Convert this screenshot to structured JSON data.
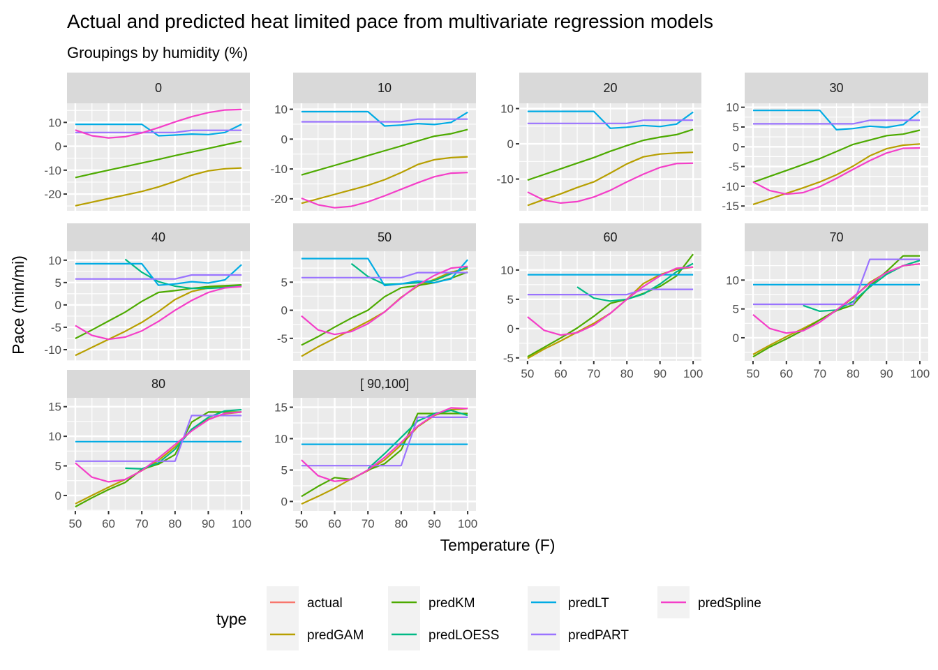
{
  "chart_data": {
    "type": "line",
    "title": "Actual and predicted heat limited pace from multivariate regression models",
    "subtitle": "Groupings by humidity (%)",
    "xlabel": "Temperature (F)",
    "ylabel": "Pace (min/mi)",
    "x": [
      50,
      55,
      60,
      65,
      70,
      75,
      80,
      85,
      90,
      95,
      100
    ],
    "x_ticks": [
      50,
      60,
      70,
      80,
      90,
      100
    ],
    "grid": true,
    "legend": {
      "title": "type",
      "position": "bottom",
      "entries": [
        {
          "name": "actual",
          "color": "#F8766D"
        },
        {
          "name": "predGAM",
          "color": "#B79F00"
        },
        {
          "name": "predKM",
          "color": "#4DAA00"
        },
        {
          "name": "predLOESS",
          "color": "#00B985"
        },
        {
          "name": "predLT",
          "color": "#00ABE4"
        },
        {
          "name": "predPART",
          "color": "#9A73FF"
        },
        {
          "name": "predSpline",
          "color": "#F43EC8"
        }
      ]
    },
    "panels": [
      {
        "label": "0",
        "ylim": [
          -27,
          18
        ],
        "y_ticks": [
          -20,
          -10,
          0,
          10
        ],
        "series": {
          "predGAM": [
            -24.9,
            -23.4,
            -21.9,
            -20.4,
            -18.9,
            -17.0,
            -14.7,
            -12.1,
            -10.3,
            -9.4,
            -9.1
          ],
          "predKM": [
            -13.1,
            -11.5,
            -10.0,
            -8.5,
            -7.0,
            -5.5,
            -3.9,
            -2.4,
            -0.9,
            0.6,
            2.1
          ],
          "predLT": [
            9.2,
            9.2,
            9.2,
            9.2,
            9.2,
            4.4,
            4.7,
            5.1,
            4.9,
            5.8,
            9.2
          ],
          "predPART": [
            5.8,
            5.8,
            5.8,
            5.8,
            5.8,
            5.8,
            5.8,
            6.7,
            6.7,
            6.7,
            6.7
          ],
          "predSpline": [
            6.8,
            4.4,
            3.5,
            4.0,
            5.6,
            7.8,
            10.2,
            12.4,
            14.1,
            15.2,
            15.4
          ]
        }
      },
      {
        "label": "10",
        "ylim": [
          -24,
          12
        ],
        "y_ticks": [
          -20,
          -10,
          0,
          10
        ],
        "series": {
          "predGAM": [
            -21.5,
            -20.0,
            -18.5,
            -17.0,
            -15.5,
            -13.6,
            -11.2,
            -8.5,
            -6.9,
            -6.2,
            -5.9
          ],
          "predKM": [
            -12.0,
            -10.4,
            -8.8,
            -7.2,
            -5.5,
            -3.9,
            -2.3,
            -0.6,
            1.0,
            1.8,
            3.2
          ],
          "predLT": [
            9.2,
            9.2,
            9.2,
            9.2,
            9.2,
            4.4,
            4.7,
            5.2,
            4.9,
            5.6,
            9.0
          ],
          "predPART": [
            5.8,
            5.8,
            5.8,
            5.8,
            5.8,
            5.8,
            5.8,
            6.7,
            6.7,
            6.7,
            6.7
          ],
          "predSpline": [
            -19.8,
            -22.0,
            -23.0,
            -22.5,
            -21.0,
            -19.0,
            -16.8,
            -14.6,
            -12.6,
            -11.4,
            -11.2
          ]
        }
      },
      {
        "label": "20",
        "ylim": [
          -19,
          11.5
        ],
        "y_ticks": [
          -10,
          0,
          10
        ],
        "series": {
          "predGAM": [
            -17.5,
            -15.8,
            -14.2,
            -12.4,
            -10.8,
            -8.3,
            -5.7,
            -3.7,
            -2.9,
            -2.6,
            -2.4
          ],
          "predKM": [
            -10.3,
            -8.7,
            -7.1,
            -5.5,
            -3.9,
            -2.1,
            -0.5,
            1.0,
            1.9,
            2.6,
            4.1
          ],
          "predLT": [
            9.2,
            9.2,
            9.2,
            9.2,
            9.2,
            4.4,
            4.7,
            5.2,
            4.9,
            5.6,
            9.0
          ],
          "predPART": [
            5.8,
            5.8,
            5.8,
            5.8,
            5.8,
            5.8,
            5.8,
            6.7,
            6.7,
            6.7,
            6.7
          ],
          "predSpline": [
            -13.7,
            -16.0,
            -16.8,
            -16.4,
            -15.1,
            -13.2,
            -10.8,
            -8.6,
            -6.7,
            -5.6,
            -5.5
          ]
        }
      },
      {
        "label": "30",
        "ylim": [
          -16.2,
          11
        ],
        "y_ticks": [
          -15,
          -10,
          -5,
          0,
          5,
          10
        ],
        "series": {
          "predGAM": [
            -14.6,
            -13.2,
            -11.8,
            -10.4,
            -8.9,
            -7.1,
            -4.9,
            -2.3,
            -0.5,
            0.4,
            0.7
          ],
          "predKM": [
            -9.0,
            -7.5,
            -6.0,
            -4.5,
            -3.0,
            -1.2,
            0.6,
            1.7,
            2.8,
            3.2,
            4.2
          ],
          "predLT": [
            9.2,
            9.2,
            9.2,
            9.2,
            9.2,
            4.3,
            4.6,
            5.2,
            4.9,
            5.6,
            9.0
          ],
          "predPART": [
            5.8,
            5.8,
            5.8,
            5.8,
            5.8,
            5.8,
            5.8,
            6.7,
            6.7,
            6.7,
            6.7
          ],
          "predSpline": [
            -8.9,
            -11.1,
            -12.0,
            -11.6,
            -10.1,
            -8.0,
            -5.7,
            -3.5,
            -1.6,
            -0.4,
            -0.3
          ]
        }
      },
      {
        "label": "40",
        "ylim": [
          -12.5,
          12
        ],
        "y_ticks": [
          -10,
          -5,
          0,
          5,
          10
        ],
        "series": {
          "predGAM": [
            -11.3,
            -9.5,
            -7.7,
            -5.9,
            -3.9,
            -1.5,
            1.2,
            3.0,
            3.8,
            4.2,
            4.4
          ],
          "predKM": [
            -7.5,
            -5.6,
            -3.6,
            -1.6,
            0.8,
            2.8,
            3.2,
            3.7,
            4.1,
            4.3,
            4.5
          ],
          "predLOESS": [
            null,
            null,
            null,
            10.2,
            7.3,
            5.2,
            4.2,
            3.7,
            3.7,
            3.9,
            4.2
          ],
          "predLT": [
            9.2,
            9.2,
            9.2,
            9.2,
            9.2,
            4.4,
            4.7,
            5.2,
            4.9,
            5.6,
            9.0
          ],
          "predPART": [
            5.8,
            5.8,
            5.8,
            5.8,
            5.8,
            5.8,
            5.8,
            6.7,
            6.7,
            6.7,
            6.7
          ],
          "predSpline": [
            -4.6,
            -6.8,
            -7.7,
            -7.2,
            -5.8,
            -3.7,
            -1.2,
            1.0,
            2.8,
            3.8,
            4.1
          ]
        }
      },
      {
        "label": "50",
        "ylim": [
          -9,
          10.5
        ],
        "y_ticks": [
          -5,
          0,
          5
        ],
        "series": {
          "predGAM": [
            -8.2,
            -6.5,
            -5.0,
            -3.5,
            -2.0,
            -0.3,
            2.3,
            4.3,
            5.5,
            6.8,
            7.4
          ],
          "predKM": [
            -6.2,
            -4.7,
            -3.0,
            -1.4,
            0.0,
            2.4,
            4.0,
            4.4,
            4.9,
            5.7,
            6.8
          ],
          "predLOESS": [
            null,
            null,
            null,
            8.3,
            6.0,
            4.6,
            4.7,
            4.9,
            5.3,
            6.5,
            7.7
          ],
          "predLT": [
            9.2,
            9.2,
            9.2,
            9.2,
            9.2,
            4.4,
            4.7,
            5.2,
            4.9,
            5.6,
            9.0
          ],
          "predPART": [
            5.8,
            5.8,
            5.8,
            5.8,
            5.8,
            5.8,
            5.8,
            6.7,
            6.7,
            6.7,
            6.7
          ],
          "predSpline": [
            -1.0,
            -3.5,
            -4.3,
            -3.8,
            -2.4,
            -0.3,
            2.2,
            4.5,
            6.2,
            7.5,
            7.8
          ]
        }
      },
      {
        "label": "60",
        "ylim": [
          -5.5,
          13.2
        ],
        "y_ticks": [
          -5,
          0,
          5,
          10
        ],
        "series": {
          "predGAM": [
            -5.1,
            -3.5,
            -2.1,
            -0.6,
            0.9,
            2.6,
            5.0,
            7.7,
            9.2,
            10.1,
            10.5
          ],
          "predKM": [
            -4.8,
            -3.2,
            -1.6,
            0.1,
            2.1,
            4.3,
            5.0,
            6.0,
            7.2,
            9.0,
            12.7
          ],
          "predLOESS": [
            null,
            null,
            null,
            7.1,
            5.2,
            4.7,
            5.0,
            5.9,
            7.6,
            9.7,
            11.1
          ],
          "predLT": [
            9.2,
            9.2,
            9.2,
            9.2,
            9.2,
            9.2,
            9.2,
            9.2,
            9.2,
            9.2,
            9.2
          ],
          "predPART": [
            5.8,
            5.8,
            5.8,
            5.8,
            5.8,
            5.8,
            5.8,
            6.7,
            6.7,
            6.7,
            6.7
          ],
          "predSpline": [
            2.0,
            -0.3,
            -1.1,
            -0.7,
            0.6,
            2.6,
            5.0,
            7.2,
            9.0,
            10.3,
            10.5
          ]
        }
      },
      {
        "label": "70",
        "ylim": [
          -4,
          15
        ],
        "y_ticks": [
          0,
          5,
          10
        ],
        "series": {
          "predGAM": [
            -2.9,
            -1.3,
            0.2,
            1.6,
            3.1,
            4.8,
            6.9,
            9.6,
            11.3,
            12.5,
            12.8
          ],
          "predKM": [
            -3.3,
            -1.6,
            -0.2,
            1.3,
            3.1,
            4.7,
            5.7,
            9.0,
            11.5,
            14.2,
            14.2
          ],
          "predLOESS": [
            null,
            null,
            null,
            5.6,
            4.6,
            4.8,
            6.3,
            8.8,
            11.0,
            12.5,
            13.4
          ],
          "predLT": [
            9.2,
            9.2,
            9.2,
            9.2,
            9.2,
            9.2,
            9.2,
            9.2,
            9.2,
            9.2,
            9.2
          ],
          "predPART": [
            5.8,
            5.8,
            5.8,
            5.8,
            5.8,
            5.8,
            5.8,
            13.6,
            13.6,
            13.6,
            13.6
          ],
          "predSpline": [
            4.0,
            1.6,
            0.8,
            1.2,
            2.7,
            4.8,
            7.1,
            9.4,
            11.3,
            12.5,
            12.8
          ]
        }
      },
      {
        "label": "80",
        "ylim": [
          -2.6,
          16.5
        ],
        "y_ticks": [
          0,
          5,
          10,
          15
        ],
        "series": {
          "predGAM": [
            -1.4,
            0.0,
            1.4,
            2.7,
            4.2,
            5.9,
            8.2,
            11.0,
            12.9,
            13.8,
            14.1
          ],
          "predKM": [
            -1.9,
            -0.4,
            1.0,
            2.2,
            4.4,
            5.3,
            6.9,
            12.4,
            14.1,
            14.1,
            14.1
          ],
          "predLOESS": [
            null,
            null,
            null,
            4.6,
            4.5,
            5.5,
            7.8,
            11.2,
            13.2,
            14.3,
            14.5
          ],
          "predLT": [
            9.1,
            9.1,
            9.1,
            9.1,
            9.1,
            9.1,
            9.1,
            9.1,
            9.1,
            9.1,
            9.1
          ],
          "predPART": [
            5.8,
            5.8,
            5.8,
            5.8,
            5.8,
            5.8,
            5.8,
            13.5,
            13.5,
            13.5,
            13.5
          ],
          "predSpline": [
            5.5,
            3.1,
            2.3,
            2.7,
            4.2,
            6.3,
            8.6,
            10.9,
            12.8,
            13.9,
            14.1
          ]
        }
      },
      {
        "label": "[ 90,100]",
        "ylim": [
          -1.5,
          16.5
        ],
        "y_ticks": [
          0,
          5,
          10,
          15
        ],
        "series": {
          "predGAM": [
            -0.4,
            0.8,
            2.1,
            3.6,
            4.9,
            6.6,
            9.0,
            11.9,
            13.7,
            14.6,
            14.8
          ],
          "predKM": [
            0.8,
            2.4,
            3.8,
            3.5,
            5.0,
            6.0,
            8.2,
            14.0,
            14.0,
            14.0,
            14.0
          ],
          "predLOESS": [
            null,
            null,
            null,
            null,
            5.2,
            7.6,
            10.2,
            12.8,
            14.0,
            14.5,
            13.7
          ],
          "predLT": [
            9.1,
            9.1,
            9.1,
            9.1,
            9.1,
            9.1,
            9.1,
            9.1,
            9.1,
            9.1,
            9.1
          ],
          "predPART": [
            5.7,
            5.7,
            5.7,
            5.7,
            5.7,
            5.7,
            5.7,
            13.4,
            13.4,
            13.4,
            13.4
          ],
          "predSpline": [
            6.6,
            4.1,
            3.2,
            3.5,
            5.0,
            7.0,
            9.4,
            12.0,
            13.8,
            14.9,
            14.8
          ]
        }
      }
    ]
  }
}
